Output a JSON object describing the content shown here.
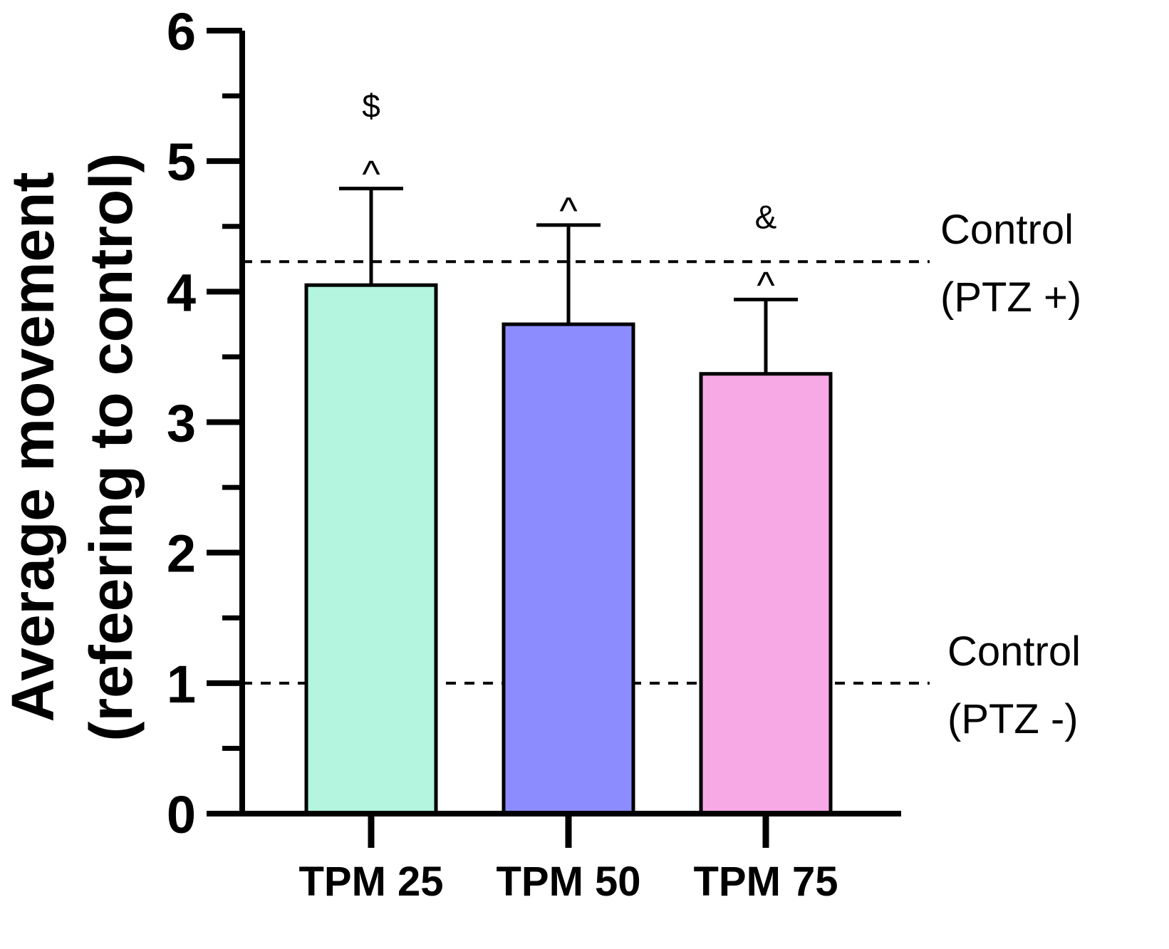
{
  "chart_data": {
    "type": "bar",
    "title": "",
    "xlabel": "",
    "ylabel_lines": [
      "Average movement",
      "(refeering to control)"
    ],
    "ylim": [
      0,
      6
    ],
    "major_ticks": [
      0,
      1,
      2,
      3,
      4,
      5,
      6
    ],
    "minor_ticks": [
      0.5,
      1.5,
      2.5,
      3.5,
      4.5,
      5.5
    ],
    "categories": [
      "TPM 25",
      "TPM 50",
      "TPM 75"
    ],
    "values": [
      4.05,
      3.75,
      3.37
    ],
    "error_upper": [
      4.79,
      4.51,
      3.94
    ],
    "colors": [
      "#b3f5df",
      "#8c8cff",
      "#f7a9e6"
    ],
    "annotations": [
      {
        "category": "TPM 25",
        "labels": [
          "$",
          "^"
        ]
      },
      {
        "category": "TPM 50",
        "labels": [
          "^"
        ]
      },
      {
        "category": "TPM 75",
        "labels": [
          "&",
          "^"
        ]
      }
    ],
    "reference_lines": [
      {
        "value": 4.23,
        "label_lines": [
          "Control",
          "(PTZ +)"
        ]
      },
      {
        "value": 1.0,
        "label_lines": [
          "Control",
          "(PTZ -)"
        ]
      }
    ]
  }
}
